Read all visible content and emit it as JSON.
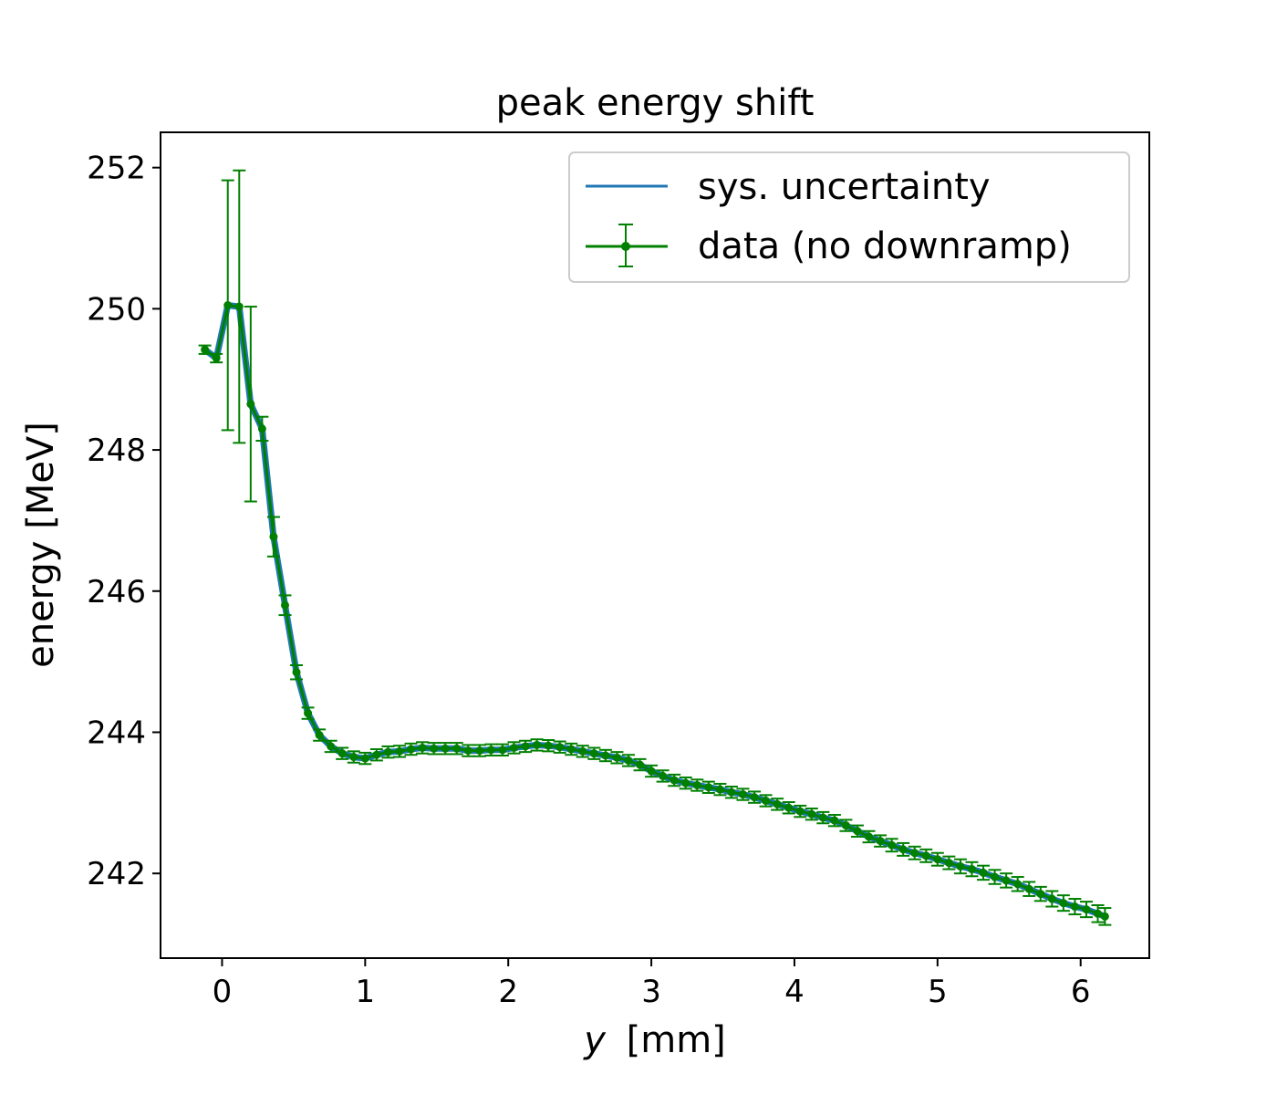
{
  "chart_data": {
    "type": "line",
    "title": "peak energy shift",
    "xlabel_var": "y",
    "xlabel_unit": "[mm]",
    "ylabel": "energy [MeV]",
    "xlim": [
      -0.43,
      6.48
    ],
    "ylim": [
      240.8,
      252.5
    ],
    "xticks": [
      0,
      1,
      2,
      3,
      4,
      5,
      6
    ],
    "yticks": [
      242,
      244,
      246,
      248,
      250,
      252
    ],
    "grid": false,
    "legend_position": "top-right",
    "colors": {
      "sys": "#1f77b4",
      "data": "#008000"
    },
    "series": [
      {
        "name": "sys. uncertainty",
        "kind": "line",
        "x": [
          -0.12,
          -0.04,
          0.04,
          0.12,
          0.2,
          0.28,
          0.36,
          0.44,
          0.52,
          0.6,
          0.68,
          0.76,
          0.84,
          0.92,
          1.0,
          1.08,
          1.16,
          1.24,
          1.32,
          1.4,
          1.48,
          1.56,
          1.64,
          1.72,
          1.8,
          1.88,
          1.96,
          2.04,
          2.12,
          2.2,
          2.28,
          2.36,
          2.44,
          2.52,
          2.6,
          2.68,
          2.76,
          2.84,
          2.92,
          3.0,
          3.08,
          3.16,
          3.24,
          3.32,
          3.4,
          3.48,
          3.56,
          3.64,
          3.72,
          3.8,
          3.88,
          3.96,
          4.04,
          4.12,
          4.2,
          4.28,
          4.36,
          4.44,
          4.52,
          4.6,
          4.68,
          4.76,
          4.84,
          4.92,
          5.0,
          5.08,
          5.16,
          5.24,
          5.32,
          5.4,
          5.48,
          5.56,
          5.64,
          5.72,
          5.8,
          5.88,
          5.96,
          6.04,
          6.12,
          6.17
        ],
        "y": [
          249.42,
          249.3,
          250.05,
          250.03,
          248.65,
          248.3,
          246.77,
          245.8,
          244.85,
          244.27,
          243.96,
          243.8,
          243.7,
          243.65,
          243.63,
          243.68,
          243.72,
          243.73,
          243.76,
          243.78,
          243.77,
          243.77,
          243.77,
          243.74,
          243.74,
          243.75,
          243.75,
          243.78,
          243.8,
          243.82,
          243.81,
          243.79,
          243.76,
          243.73,
          243.7,
          243.67,
          243.64,
          243.6,
          243.54,
          243.45,
          243.38,
          243.32,
          243.28,
          243.25,
          243.22,
          243.19,
          243.15,
          243.12,
          243.08,
          243.03,
          242.98,
          242.93,
          242.88,
          242.84,
          242.79,
          242.75,
          242.68,
          242.6,
          242.52,
          242.46,
          242.4,
          242.34,
          242.29,
          242.25,
          242.2,
          242.15,
          242.1,
          242.06,
          242.01,
          241.95,
          241.9,
          241.85,
          241.78,
          241.71,
          241.64,
          241.58,
          241.53,
          241.49,
          241.43,
          241.39
        ]
      },
      {
        "name": "data (no downramp)",
        "kind": "errorbar",
        "x": [
          -0.12,
          -0.04,
          0.04,
          0.12,
          0.2,
          0.28,
          0.36,
          0.44,
          0.52,
          0.6,
          0.68,
          0.76,
          0.84,
          0.92,
          1.0,
          1.08,
          1.16,
          1.24,
          1.32,
          1.4,
          1.48,
          1.56,
          1.64,
          1.72,
          1.8,
          1.88,
          1.96,
          2.04,
          2.12,
          2.2,
          2.28,
          2.36,
          2.44,
          2.52,
          2.6,
          2.68,
          2.76,
          2.84,
          2.92,
          3.0,
          3.08,
          3.16,
          3.24,
          3.32,
          3.4,
          3.48,
          3.56,
          3.64,
          3.72,
          3.8,
          3.88,
          3.96,
          4.04,
          4.12,
          4.2,
          4.28,
          4.36,
          4.44,
          4.52,
          4.6,
          4.68,
          4.76,
          4.84,
          4.92,
          5.0,
          5.08,
          5.16,
          5.24,
          5.32,
          5.4,
          5.48,
          5.56,
          5.64,
          5.72,
          5.8,
          5.88,
          5.96,
          6.04,
          6.12,
          6.17
        ],
        "y": [
          249.42,
          249.3,
          250.05,
          250.03,
          248.65,
          248.3,
          246.77,
          245.8,
          244.85,
          244.27,
          243.96,
          243.8,
          243.7,
          243.65,
          243.63,
          243.68,
          243.72,
          243.73,
          243.76,
          243.78,
          243.77,
          243.77,
          243.77,
          243.74,
          243.74,
          243.75,
          243.75,
          243.78,
          243.8,
          243.82,
          243.81,
          243.79,
          243.76,
          243.73,
          243.7,
          243.67,
          243.64,
          243.6,
          243.54,
          243.45,
          243.38,
          243.32,
          243.28,
          243.25,
          243.22,
          243.19,
          243.15,
          243.12,
          243.08,
          243.03,
          242.98,
          242.93,
          242.88,
          242.84,
          242.79,
          242.75,
          242.68,
          242.6,
          242.52,
          242.46,
          242.4,
          242.34,
          242.29,
          242.25,
          242.2,
          242.15,
          242.1,
          242.06,
          242.01,
          241.95,
          241.9,
          241.85,
          241.78,
          241.71,
          241.64,
          241.58,
          241.53,
          241.49,
          241.43,
          241.39
        ],
        "yerr": [
          0.06,
          0.06,
          1.77,
          1.93,
          1.38,
          0.17,
          0.28,
          0.14,
          0.1,
          0.08,
          0.08,
          0.08,
          0.08,
          0.08,
          0.08,
          0.08,
          0.08,
          0.08,
          0.08,
          0.08,
          0.08,
          0.08,
          0.08,
          0.08,
          0.08,
          0.08,
          0.08,
          0.08,
          0.08,
          0.08,
          0.08,
          0.08,
          0.08,
          0.08,
          0.08,
          0.08,
          0.08,
          0.08,
          0.08,
          0.08,
          0.08,
          0.08,
          0.08,
          0.08,
          0.08,
          0.08,
          0.08,
          0.08,
          0.08,
          0.08,
          0.08,
          0.08,
          0.08,
          0.08,
          0.08,
          0.08,
          0.08,
          0.08,
          0.08,
          0.08,
          0.09,
          0.09,
          0.09,
          0.09,
          0.09,
          0.09,
          0.1,
          0.1,
          0.1,
          0.1,
          0.1,
          0.1,
          0.1,
          0.1,
          0.11,
          0.11,
          0.11,
          0.11,
          0.12,
          0.12
        ]
      }
    ]
  }
}
